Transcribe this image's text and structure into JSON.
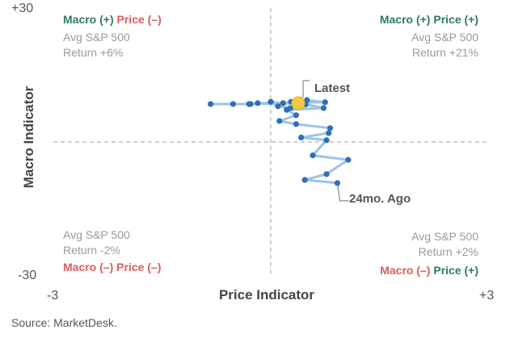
{
  "chart_data": {
    "type": "scatter",
    "xlabel": "Price Indicator",
    "ylabel": "Macro Indicator",
    "xlim": [
      -3,
      3
    ],
    "ylim": [
      -30,
      30
    ],
    "x_tick_labels": [
      "-3",
      "+3"
    ],
    "y_tick_labels": [
      "+30",
      "-30"
    ],
    "grid": false,
    "quadrant_lines": {
      "x": 0,
      "y": 0
    },
    "series": [
      {
        "points": [
          {
            "x": 0.92,
            "y": -9.2
          },
          {
            "x": 0.47,
            "y": -8.5
          },
          {
            "x": 0.77,
            "y": -7.2
          },
          {
            "x": 1.07,
            "y": -4.0
          },
          {
            "x": 0.58,
            "y": -3.0
          },
          {
            "x": 0.77,
            "y": 0.4
          },
          {
            "x": 0.42,
            "y": 1.0
          },
          {
            "x": 0.8,
            "y": 2.0
          },
          {
            "x": 0.82,
            "y": 3.1
          },
          {
            "x": 0.35,
            "y": 4.0
          },
          {
            "x": 0.12,
            "y": 4.7
          },
          {
            "x": 0.35,
            "y": 6.0
          },
          {
            "x": 0.22,
            "y": 7.2
          },
          {
            "x": 0.73,
            "y": 7.6
          },
          {
            "x": 0.48,
            "y": 8.4
          },
          {
            "x": 0.27,
            "y": 7.6
          },
          {
            "x": 0.1,
            "y": 8.0
          },
          {
            "x": 0.0,
            "y": 9.0
          },
          {
            "x": 0.17,
            "y": 8.7
          },
          {
            "x": 0.28,
            "y": 9.0
          },
          {
            "x": 0.5,
            "y": 9.4
          },
          {
            "x": 0.75,
            "y": 8.9
          },
          {
            "x": -0.18,
            "y": 8.7
          },
          {
            "x": -0.3,
            "y": 8.5
          },
          {
            "x": -0.52,
            "y": 8.5
          },
          {
            "x": -0.83,
            "y": 8.5
          },
          {
            "x": -0.28,
            "y": 8.5
          },
          {
            "x": 0.38,
            "y": 8.7
          }
        ]
      }
    ],
    "latest": {
      "x": 0.38,
      "y": 8.7
    },
    "colors": {
      "line": "#9ec3e6",
      "point": "#2e6fb7",
      "latest": "#f5c842",
      "axis_dash": "#b0b0b0",
      "positive": "#2e7d5b",
      "negative": "#e05a5a"
    }
  },
  "quadrants": {
    "top_left": {
      "macro": "Macro (+)",
      "price": "Price (–)",
      "stat_line1": "Avg S&P 500",
      "stat_line2": "Return +6%"
    },
    "top_right": {
      "macro": "Macro (+)",
      "price": "Price (+)",
      "stat_line1": "Avg S&P 500",
      "stat_line2": "Return +21%"
    },
    "bottom_left": {
      "macro": "Macro (–)",
      "price": "Price (–)",
      "stat_line1": "Avg S&P 500",
      "stat_line2": "Return -2%"
    },
    "bottom_right": {
      "macro": "Macro (–)",
      "price": "Price (+)",
      "stat_line1": "Avg S&P 500",
      "stat_line2": "Return +2%"
    }
  },
  "annotations": {
    "latest": "Latest",
    "start": "24mo. Ago"
  },
  "source": "Source: MarketDesk."
}
